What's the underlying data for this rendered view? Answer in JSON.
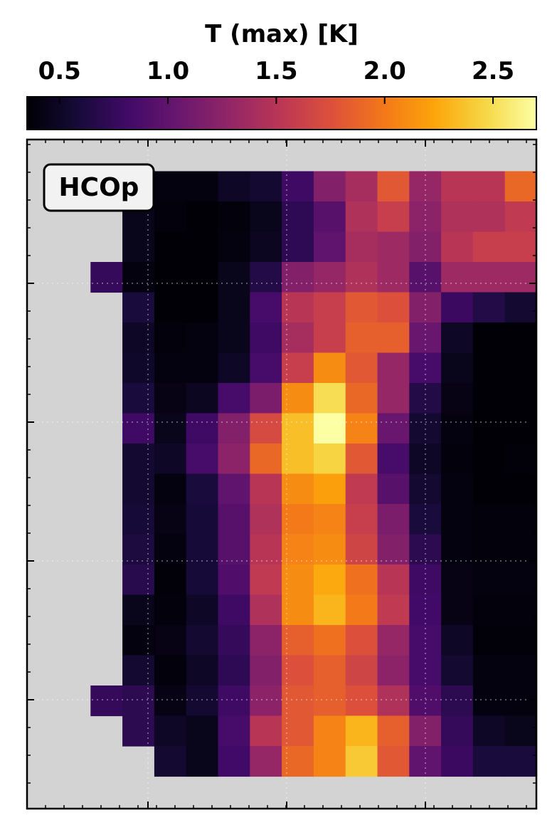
{
  "chart_data": {
    "type": "heatmap",
    "title": "T (max) [K]",
    "label": "HCOp",
    "colormap": "inferno",
    "colorbar": {
      "position": "top",
      "range": [
        0.35,
        2.7
      ],
      "ticks": [
        0.5,
        1.0,
        1.5,
        2.0,
        2.5
      ],
      "tick_labels": [
        "0.5",
        "1.0",
        "1.5",
        "2.0",
        "2.5"
      ]
    },
    "grid": true,
    "missing_color": "#d3d3d3",
    "values": [
      [
        null,
        null,
        0.5,
        0.4,
        0.4,
        0.5,
        0.55,
        0.8,
        1.2,
        1.4,
        1.8,
        1.3,
        1.5,
        1.5,
        1.9
      ],
      [
        null,
        null,
        0.45,
        0.38,
        0.36,
        0.38,
        0.45,
        0.72,
        0.95,
        1.45,
        1.6,
        1.25,
        1.45,
        1.45,
        1.55
      ],
      [
        null,
        null,
        0.45,
        0.36,
        0.36,
        0.4,
        0.48,
        0.72,
        1.0,
        1.4,
        1.35,
        1.2,
        1.5,
        1.6,
        1.6
      ],
      [
        null,
        0.75,
        0.4,
        0.36,
        0.36,
        0.45,
        0.65,
        1.2,
        1.3,
        1.45,
        1.35,
        0.95,
        1.35,
        1.35,
        1.35
      ],
      [
        null,
        null,
        0.6,
        0.36,
        0.36,
        0.45,
        0.85,
        1.5,
        1.6,
        1.8,
        1.75,
        1.2,
        0.78,
        0.65,
        0.55
      ],
      [
        null,
        null,
        0.5,
        0.38,
        0.4,
        0.45,
        0.8,
        1.4,
        1.6,
        1.85,
        1.85,
        1.05,
        0.5,
        0.36,
        0.36
      ],
      [
        null,
        null,
        0.52,
        0.4,
        0.4,
        0.5,
        0.85,
        1.6,
        2.1,
        1.8,
        1.3,
        0.85,
        0.45,
        0.36,
        0.36
      ],
      [
        null,
        null,
        0.6,
        0.42,
        0.48,
        0.85,
        1.15,
        2.1,
        2.5,
        1.9,
        1.3,
        0.65,
        0.42,
        0.36,
        0.36
      ],
      [
        null,
        null,
        0.8,
        0.45,
        0.8,
        1.2,
        1.7,
        2.35,
        2.7,
        2.05,
        1.05,
        0.55,
        0.4,
        0.36,
        0.36
      ],
      [
        null,
        null,
        0.55,
        0.5,
        0.85,
        1.25,
        1.9,
        2.35,
        2.45,
        1.8,
        0.85,
        0.5,
        0.38,
        0.36,
        0.37
      ],
      [
        null,
        null,
        0.55,
        0.4,
        0.6,
        1.0,
        1.5,
        2.1,
        2.2,
        1.55,
        0.95,
        0.55,
        0.4,
        0.36,
        0.36
      ],
      [
        null,
        null,
        0.58,
        0.42,
        0.58,
        0.95,
        1.45,
        2.0,
        2.05,
        1.6,
        1.15,
        0.6,
        0.4,
        0.38,
        0.38
      ],
      [
        null,
        null,
        0.62,
        0.4,
        0.58,
        0.95,
        1.5,
        2.05,
        2.1,
        1.65,
        1.2,
        0.7,
        0.4,
        0.38,
        0.38
      ],
      [
        null,
        null,
        0.68,
        0.37,
        0.58,
        0.9,
        1.55,
        2.1,
        2.25,
        1.95,
        1.5,
        0.8,
        0.42,
        0.4,
        0.4
      ],
      [
        null,
        null,
        0.45,
        0.38,
        0.5,
        0.8,
        1.45,
        2.1,
        2.3,
        2.0,
        1.55,
        0.82,
        0.42,
        0.38,
        0.38
      ],
      [
        null,
        null,
        0.4,
        0.42,
        0.55,
        0.75,
        1.25,
        1.85,
        1.95,
        1.75,
        1.3,
        0.85,
        0.5,
        0.37,
        0.37
      ],
      [
        null,
        null,
        0.55,
        0.38,
        0.5,
        0.72,
        1.2,
        1.75,
        1.85,
        1.65,
        1.25,
        0.85,
        0.55,
        0.4,
        0.4
      ],
      [
        null,
        0.75,
        0.7,
        0.42,
        0.55,
        0.8,
        1.25,
        1.8,
        1.85,
        1.75,
        1.45,
        0.9,
        0.7,
        0.4,
        0.4
      ],
      [
        null,
        null,
        0.7,
        0.5,
        0.45,
        0.85,
        1.5,
        1.8,
        2.05,
        2.3,
        1.85,
        1.2,
        0.75,
        0.5,
        0.45
      ],
      [
        null,
        null,
        null,
        0.55,
        0.45,
        0.82,
        1.3,
        1.9,
        2.05,
        2.4,
        1.8,
        1.0,
        0.78,
        0.6,
        0.6
      ]
    ]
  }
}
